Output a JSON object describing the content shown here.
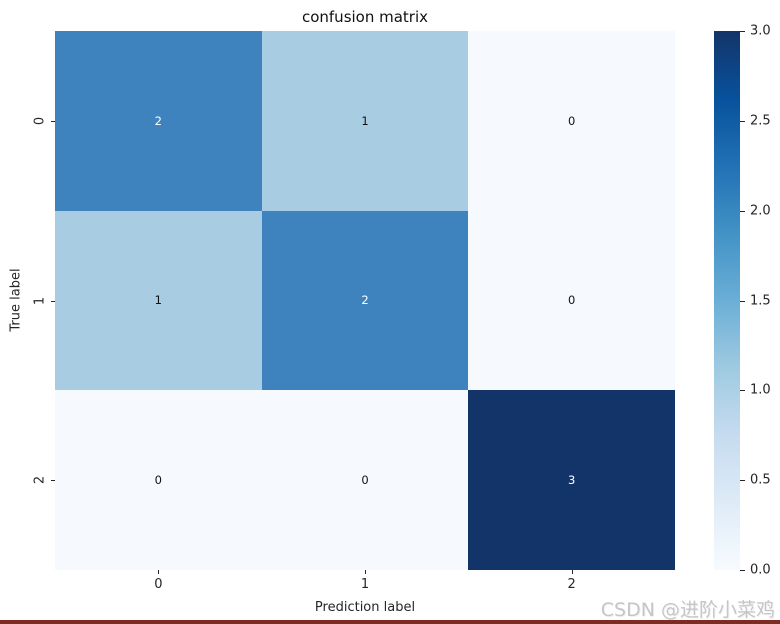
{
  "page": {
    "background": "#ffffff",
    "watermark": "CSDN @进阶小菜鸡",
    "watermark_color": "#c6c6c6",
    "bottom_bar_color": "#7e2b24"
  },
  "chart_data": {
    "type": "heatmap",
    "title": "confusion matrix",
    "xlabel": "Prediction label",
    "ylabel": "True label",
    "x_ticklabels": [
      "0",
      "1",
      "2"
    ],
    "y_ticklabels": [
      "0",
      "1",
      "2"
    ],
    "matrix": [
      [
        2,
        1,
        0
      ],
      [
        1,
        2,
        0
      ],
      [
        0,
        0,
        3
      ]
    ],
    "vmin": 0,
    "vmax": 3,
    "colormap": "Blues",
    "grid": false,
    "legend_position": "right-colorbar",
    "value_colors": {
      "0": "#f6fafe",
      "1": "#a8cde3",
      "2": "#3e83bd",
      "3": "#133469"
    },
    "value_text_colors": {
      "0": "#111111",
      "1": "#111111",
      "2": "#ffffff",
      "3": "#ffffff"
    },
    "colorbar_ticks": [
      "3.0",
      "2.5",
      "2.0",
      "1.5",
      "1.0",
      "0.5",
      "0.0"
    ],
    "colorbar_gradient_bottom_to_top": [
      "#f7fbff",
      "#deebf7",
      "#c6dbef",
      "#9ecae1",
      "#6baed6",
      "#4292c6",
      "#2171b5",
      "#08519c",
      "#133469"
    ]
  }
}
